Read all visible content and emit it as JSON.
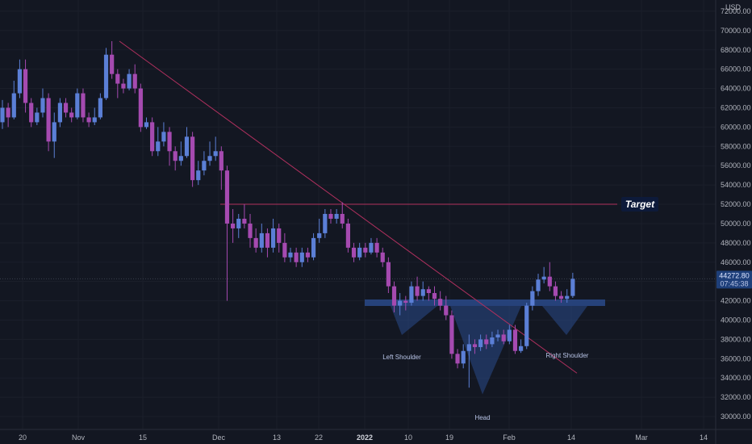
{
  "chart_data": {
    "type": "candlestick",
    "currency": "USD",
    "ylim": [
      29000,
      73500
    ],
    "y_ticks": [
      "30000.00",
      "32000.00",
      "34000.00",
      "36000.00",
      "38000.00",
      "40000.00",
      "42000.00",
      "44000.00",
      "46000.00",
      "48000.00",
      "50000.00",
      "52000.00",
      "54000.00",
      "56000.00",
      "58000.00",
      "60000.00",
      "62000.00",
      "64000.00",
      "66000.00",
      "68000.00",
      "70000.00",
      "72000.00"
    ],
    "x_ticks": [
      {
        "label": "20",
        "bold": false
      },
      {
        "label": "Nov",
        "bold": false
      },
      {
        "label": "15",
        "bold": false
      },
      {
        "label": "Dec",
        "bold": false
      },
      {
        "label": "13",
        "bold": false
      },
      {
        "label": "22",
        "bold": false
      },
      {
        "label": "2022",
        "bold": true
      },
      {
        "label": "10",
        "bold": false
      },
      {
        "label": "19",
        "bold": false
      },
      {
        "label": "Feb",
        "bold": false
      },
      {
        "label": "14",
        "bold": false
      },
      {
        "label": "Mar",
        "bold": false
      },
      {
        "label": "14",
        "bold": false
      }
    ],
    "last_price": "44272.80",
    "countdown": "07:45:38",
    "last_price_value": 44272.8,
    "target": {
      "label": "Target",
      "value": 52000
    },
    "neckline": 41800,
    "trendline": {
      "from_value": 68900,
      "to_value": 34500
    },
    "annotations": [
      {
        "label": "Left Shoulder",
        "value": 38200
      },
      {
        "label": "Head",
        "value": 32300
      },
      {
        "label": "Right Shoulder",
        "value": 38200
      }
    ],
    "colors": {
      "up": "#5b7fd6",
      "down": "#a54ab0",
      "background": "#131722",
      "target_line": "#b0305e",
      "pattern_fill": "#2a4a8a"
    },
    "candles": [
      {
        "o": 60500,
        "c": 62000,
        "h": 62800,
        "l": 59800
      },
      {
        "o": 62000,
        "c": 61000,
        "h": 62500,
        "l": 60000
      },
      {
        "o": 61000,
        "c": 63500,
        "h": 64800,
        "l": 60800
      },
      {
        "o": 63500,
        "c": 66000,
        "h": 67000,
        "l": 63000
      },
      {
        "o": 66000,
        "c": 62500,
        "h": 67000,
        "l": 61500
      },
      {
        "o": 62500,
        "c": 60500,
        "h": 63000,
        "l": 60000
      },
      {
        "o": 60500,
        "c": 61500,
        "h": 62000,
        "l": 60200
      },
      {
        "o": 61500,
        "c": 63000,
        "h": 64000,
        "l": 61000
      },
      {
        "o": 63000,
        "c": 58500,
        "h": 63500,
        "l": 57500
      },
      {
        "o": 58500,
        "c": 60500,
        "h": 61500,
        "l": 56800
      },
      {
        "o": 60500,
        "c": 62500,
        "h": 63000,
        "l": 60000
      },
      {
        "o": 62500,
        "c": 61500,
        "h": 63000,
        "l": 61000
      },
      {
        "o": 61500,
        "c": 61000,
        "h": 62000,
        "l": 60500
      },
      {
        "o": 61000,
        "c": 63500,
        "h": 64000,
        "l": 60800
      },
      {
        "o": 63500,
        "c": 61000,
        "h": 64000,
        "l": 60500
      },
      {
        "o": 61000,
        "c": 60500,
        "h": 61500,
        "l": 60000
      },
      {
        "o": 60500,
        "c": 61000,
        "h": 62000,
        "l": 60200
      },
      {
        "o": 61000,
        "c": 63000,
        "h": 63500,
        "l": 60800
      },
      {
        "o": 63000,
        "c": 67500,
        "h": 68200,
        "l": 62800
      },
      {
        "o": 67500,
        "c": 65500,
        "h": 68900,
        "l": 65000
      },
      {
        "o": 65500,
        "c": 64500,
        "h": 66000,
        "l": 63000
      },
      {
        "o": 64500,
        "c": 64000,
        "h": 65000,
        "l": 63500
      },
      {
        "o": 64000,
        "c": 65500,
        "h": 66000,
        "l": 63800
      },
      {
        "o": 65500,
        "c": 64000,
        "h": 66500,
        "l": 63500
      },
      {
        "o": 64000,
        "c": 60000,
        "h": 64500,
        "l": 59500
      },
      {
        "o": 60000,
        "c": 60500,
        "h": 61000,
        "l": 59800
      },
      {
        "o": 60500,
        "c": 57500,
        "h": 61000,
        "l": 57000
      },
      {
        "o": 57500,
        "c": 58500,
        "h": 60000,
        "l": 57000
      },
      {
        "o": 58500,
        "c": 59500,
        "h": 60500,
        "l": 58000
      },
      {
        "o": 59500,
        "c": 57500,
        "h": 60000,
        "l": 56000
      },
      {
        "o": 57500,
        "c": 56500,
        "h": 58000,
        "l": 55500
      },
      {
        "o": 56500,
        "c": 57000,
        "h": 58500,
        "l": 56000
      },
      {
        "o": 57000,
        "c": 59000,
        "h": 60000,
        "l": 56800
      },
      {
        "o": 59000,
        "c": 54500,
        "h": 59500,
        "l": 53800
      },
      {
        "o": 54500,
        "c": 55500,
        "h": 56500,
        "l": 54000
      },
      {
        "o": 55500,
        "c": 56500,
        "h": 57500,
        "l": 55000
      },
      {
        "o": 56500,
        "c": 57000,
        "h": 58500,
        "l": 56000
      },
      {
        "o": 57000,
        "c": 57500,
        "h": 59000,
        "l": 56500
      },
      {
        "o": 57500,
        "c": 55500,
        "h": 58000,
        "l": 53500
      },
      {
        "o": 55500,
        "c": 50000,
        "h": 56000,
        "l": 42000
      },
      {
        "o": 50000,
        "c": 49500,
        "h": 51500,
        "l": 48000
      },
      {
        "o": 49500,
        "c": 50500,
        "h": 51000,
        "l": 48500
      },
      {
        "o": 50500,
        "c": 50000,
        "h": 52000,
        "l": 49500
      },
      {
        "o": 50000,
        "c": 48500,
        "h": 51000,
        "l": 47500
      },
      {
        "o": 48500,
        "c": 47500,
        "h": 49500,
        "l": 47000
      },
      {
        "o": 47500,
        "c": 49000,
        "h": 50000,
        "l": 47000
      },
      {
        "o": 49000,
        "c": 47500,
        "h": 49500,
        "l": 46500
      },
      {
        "o": 47500,
        "c": 49500,
        "h": 50500,
        "l": 47000
      },
      {
        "o": 49500,
        "c": 48000,
        "h": 50000,
        "l": 47000
      },
      {
        "o": 48000,
        "c": 46500,
        "h": 49000,
        "l": 46000
      },
      {
        "o": 46500,
        "c": 47000,
        "h": 47500,
        "l": 46000
      },
      {
        "o": 47000,
        "c": 46000,
        "h": 47500,
        "l": 45500
      },
      {
        "o": 46000,
        "c": 47000,
        "h": 47500,
        "l": 45500
      },
      {
        "o": 47000,
        "c": 46500,
        "h": 47500,
        "l": 46000
      },
      {
        "o": 46500,
        "c": 48500,
        "h": 49000,
        "l": 46200
      },
      {
        "o": 48500,
        "c": 49000,
        "h": 50500,
        "l": 48000
      },
      {
        "o": 49000,
        "c": 51000,
        "h": 51500,
        "l": 48500
      },
      {
        "o": 51000,
        "c": 50500,
        "h": 51500,
        "l": 50000
      },
      {
        "o": 50500,
        "c": 51000,
        "h": 51500,
        "l": 50000
      },
      {
        "o": 51000,
        "c": 50000,
        "h": 52200,
        "l": 49500
      },
      {
        "o": 50000,
        "c": 47500,
        "h": 50500,
        "l": 47000
      },
      {
        "o": 47500,
        "c": 46500,
        "h": 48000,
        "l": 46000
      },
      {
        "o": 46500,
        "c": 47500,
        "h": 48000,
        "l": 46200
      },
      {
        "o": 47500,
        "c": 47000,
        "h": 48000,
        "l": 46500
      },
      {
        "o": 47000,
        "c": 48000,
        "h": 48500,
        "l": 46800
      },
      {
        "o": 48000,
        "c": 47000,
        "h": 48500,
        "l": 46500
      },
      {
        "o": 47000,
        "c": 46000,
        "h": 47500,
        "l": 45500
      },
      {
        "o": 46000,
        "c": 43500,
        "h": 46500,
        "l": 42800
      },
      {
        "o": 43500,
        "c": 41500,
        "h": 44000,
        "l": 40800
      },
      {
        "o": 41500,
        "c": 42000,
        "h": 42800,
        "l": 40500
      },
      {
        "o": 42000,
        "c": 41800,
        "h": 42500,
        "l": 41000
      },
      {
        "o": 41800,
        "c": 43500,
        "h": 44000,
        "l": 41500
      },
      {
        "o": 43500,
        "c": 42500,
        "h": 44500,
        "l": 42000
      },
      {
        "o": 42500,
        "c": 43200,
        "h": 44000,
        "l": 42000
      },
      {
        "o": 43200,
        "c": 42800,
        "h": 43500,
        "l": 42000
      },
      {
        "o": 42800,
        "c": 42200,
        "h": 43500,
        "l": 41500
      },
      {
        "o": 42200,
        "c": 41500,
        "h": 43000,
        "l": 41000
      },
      {
        "o": 41500,
        "c": 40500,
        "h": 42500,
        "l": 40000
      },
      {
        "o": 40500,
        "c": 36500,
        "h": 41000,
        "l": 36000
      },
      {
        "o": 36500,
        "c": 35500,
        "h": 37000,
        "l": 35000
      },
      {
        "o": 35500,
        "c": 36800,
        "h": 37500,
        "l": 35000
      },
      {
        "o": 36800,
        "c": 37500,
        "h": 38500,
        "l": 33000
      },
      {
        "o": 37500,
        "c": 37200,
        "h": 38000,
        "l": 36500
      },
      {
        "o": 37200,
        "c": 38000,
        "h": 38500,
        "l": 36800
      },
      {
        "o": 38000,
        "c": 37500,
        "h": 38500,
        "l": 37000
      },
      {
        "o": 37500,
        "c": 38200,
        "h": 38800,
        "l": 37200
      },
      {
        "o": 38200,
        "c": 38500,
        "h": 39000,
        "l": 37800
      },
      {
        "o": 38500,
        "c": 37800,
        "h": 39000,
        "l": 37500
      },
      {
        "o": 37800,
        "c": 39000,
        "h": 39500,
        "l": 37500
      },
      {
        "o": 39000,
        "c": 36800,
        "h": 39500,
        "l": 36500
      },
      {
        "o": 36800,
        "c": 37300,
        "h": 38000,
        "l": 36600
      },
      {
        "o": 37300,
        "c": 41500,
        "h": 41800,
        "l": 37000
      },
      {
        "o": 41500,
        "c": 43000,
        "h": 43500,
        "l": 41000
      },
      {
        "o": 43000,
        "c": 44200,
        "h": 44800,
        "l": 42500
      },
      {
        "o": 44200,
        "c": 44500,
        "h": 45500,
        "l": 43800
      },
      {
        "o": 44500,
        "c": 43500,
        "h": 46000,
        "l": 43000
      },
      {
        "o": 43500,
        "c": 42500,
        "h": 44000,
        "l": 42000
      },
      {
        "o": 42500,
        "c": 42200,
        "h": 43000,
        "l": 41800
      },
      {
        "o": 42200,
        "c": 42500,
        "h": 43200,
        "l": 41800
      },
      {
        "o": 42500,
        "c": 44272,
        "h": 44900,
        "l": 42300
      }
    ]
  }
}
